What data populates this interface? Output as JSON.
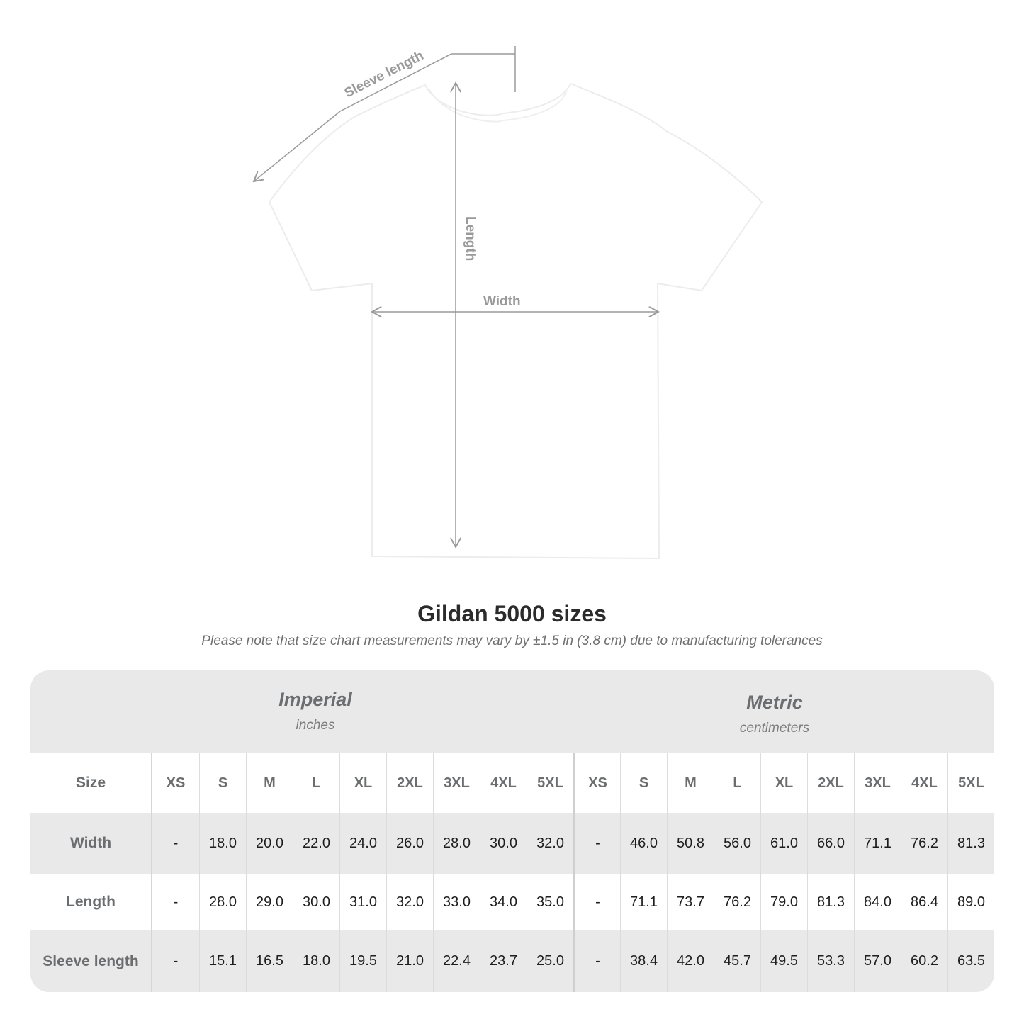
{
  "diagram": {
    "labels": {
      "sleeve": "Sleeve length",
      "length": "Length",
      "width": "Width"
    }
  },
  "title": "Gildan 5000 sizes",
  "subtitle": "Please note that size chart measurements may vary by ±1.5 in (3.8 cm) due to manufacturing tolerances",
  "table": {
    "imperial": {
      "name": "Imperial",
      "unit": "inches"
    },
    "metric": {
      "name": "Metric",
      "unit": "centimeters"
    },
    "size_label": "Size",
    "sizes": [
      "XS",
      "S",
      "M",
      "L",
      "XL",
      "2XL",
      "3XL",
      "4XL",
      "5XL"
    ],
    "rows": [
      {
        "label": "Width",
        "imperial": [
          "-",
          "18.0",
          "20.0",
          "22.0",
          "24.0",
          "26.0",
          "28.0",
          "30.0",
          "32.0"
        ],
        "metric": [
          "-",
          "46.0",
          "50.8",
          "56.0",
          "61.0",
          "66.0",
          "71.1",
          "76.2",
          "81.3"
        ]
      },
      {
        "label": "Length",
        "imperial": [
          "-",
          "28.0",
          "29.0",
          "30.0",
          "31.0",
          "32.0",
          "33.0",
          "34.0",
          "35.0"
        ],
        "metric": [
          "-",
          "71.1",
          "73.7",
          "76.2",
          "79.0",
          "81.3",
          "84.0",
          "86.4",
          "89.0"
        ]
      },
      {
        "label": "Sleeve length",
        "imperial": [
          "-",
          "15.1",
          "16.5",
          "18.0",
          "19.5",
          "21.0",
          "22.4",
          "23.7",
          "25.0"
        ],
        "metric": [
          "-",
          "38.4",
          "42.0",
          "45.7",
          "49.5",
          "53.3",
          "57.0",
          "60.2",
          "63.5"
        ]
      }
    ]
  },
  "colors": {
    "band": "#e9e9e9",
    "header_text": "#6b6e70",
    "measure_line": "#9a9a9a"
  }
}
